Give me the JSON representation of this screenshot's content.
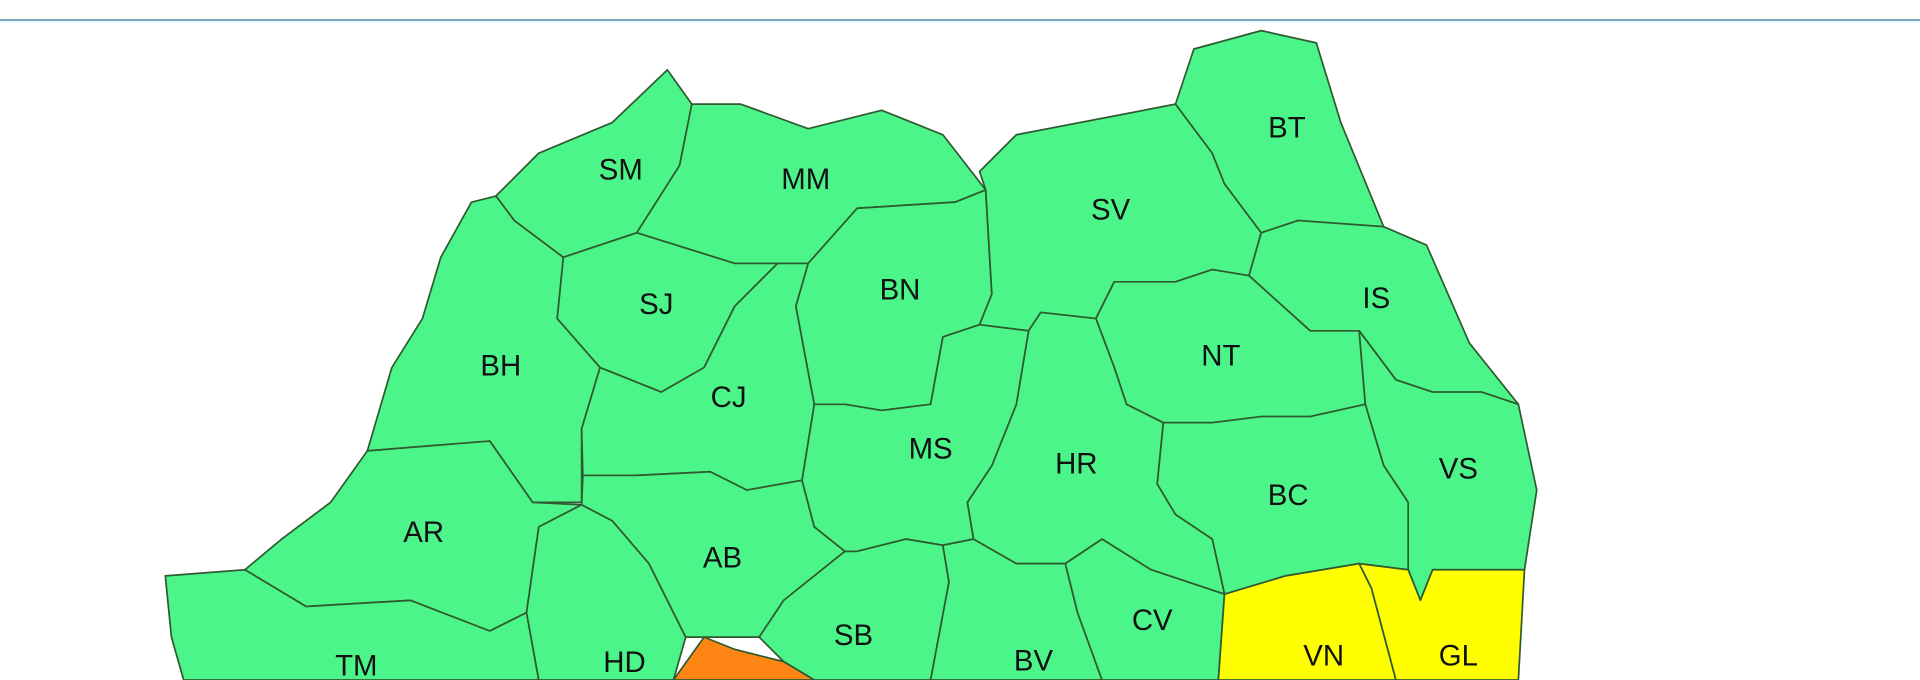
{
  "colors": {
    "green": "#4cf58a",
    "yellow": "#ffff00",
    "orange": "#ff8514",
    "border": "#2f5a2f",
    "header_line": "#7fa6bf"
  },
  "counties": [
    {
      "code": "SM",
      "level": "green"
    },
    {
      "code": "MM",
      "level": "green"
    },
    {
      "code": "SJ",
      "level": "green"
    },
    {
      "code": "BH",
      "level": "green"
    },
    {
      "code": "AR",
      "level": "green"
    },
    {
      "code": "TM",
      "level": "green"
    },
    {
      "code": "HD",
      "level": "green"
    },
    {
      "code": "CJ",
      "level": "green"
    },
    {
      "code": "AB",
      "level": "green"
    },
    {
      "code": "BN",
      "level": "green"
    },
    {
      "code": "SV",
      "level": "green"
    },
    {
      "code": "BT",
      "level": "green"
    },
    {
      "code": "IS",
      "level": "green"
    },
    {
      "code": "NT",
      "level": "green"
    },
    {
      "code": "VS",
      "level": "green"
    },
    {
      "code": "BC",
      "level": "green"
    },
    {
      "code": "HR",
      "level": "green"
    },
    {
      "code": "MS",
      "level": "green"
    },
    {
      "code": "SB",
      "level": "green"
    },
    {
      "code": "BV",
      "level": "green"
    },
    {
      "code": "CV",
      "level": "green"
    },
    {
      "code": "VN",
      "level": "yellow"
    },
    {
      "code": "GL",
      "level": "yellow"
    },
    {
      "code": "",
      "level": "orange"
    }
  ]
}
